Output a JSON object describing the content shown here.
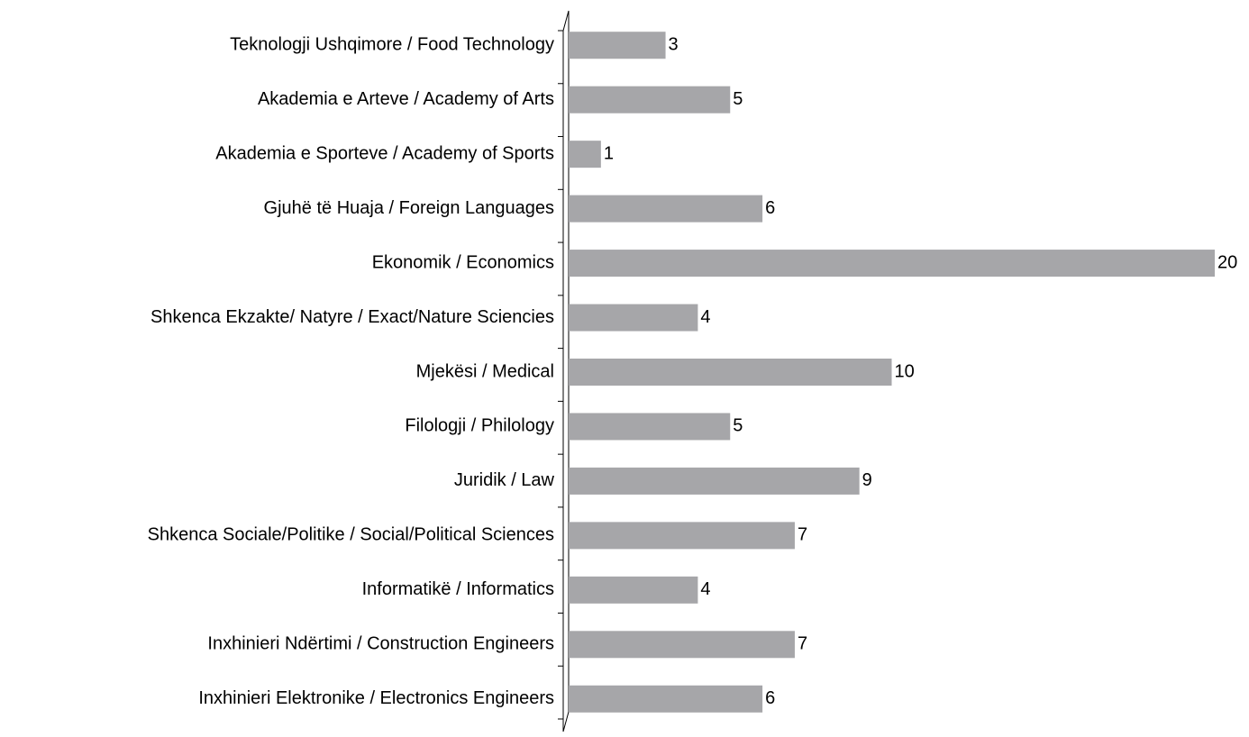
{
  "chart_data": {
    "type": "hbar",
    "categories": [
      "Teknologji Ushqimore / Food Technology",
      "Akademia e Arteve / Academy of Arts",
      "Akademia e Sporteve / Academy of Sports",
      "Gjuhë të Huaja / Foreign Languages",
      "Ekonomik / Economics",
      "Shkenca Ekzakte/ Natyre / Exact/Nature Sciencies",
      "Mjekësi / Medical",
      "Filologji / Philology",
      "Juridik / Law",
      "Shkenca Sociale/Politike / Social/Political Sciences",
      "Informatikë / Informatics",
      "Inxhinieri Ndërtimi / Construction Engineers",
      "Inxhinieri Elektronike / Electronics Engineers"
    ],
    "values": [
      3,
      5,
      1,
      6,
      20,
      4,
      10,
      5,
      9,
      7,
      4,
      7,
      6
    ],
    "color": "#a6a6a9"
  }
}
